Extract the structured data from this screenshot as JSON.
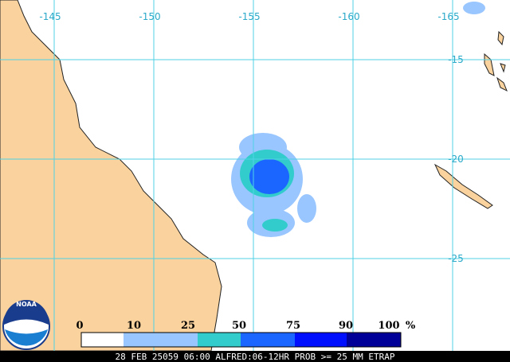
{
  "map": {
    "longitude_labels": [
      "-145",
      "-150",
      "-155",
      "-160",
      "-165"
    ],
    "latitude_labels": [
      "-15",
      "-20",
      "-25"
    ],
    "legend": {
      "labels": [
        "0",
        "10",
        "25",
        "50",
        "75",
        "90",
        "100"
      ],
      "unit": "%",
      "colors": [
        "#ffffff",
        "#99c6ff",
        "#33cccc",
        "#1a66ff",
        "#0010ff",
        "#000099"
      ]
    },
    "footer": "28 FEB 25059 06:00 ALFRED:06-12HR PROB >= 25 MM ETRAP",
    "logo": "NOAA"
  }
}
